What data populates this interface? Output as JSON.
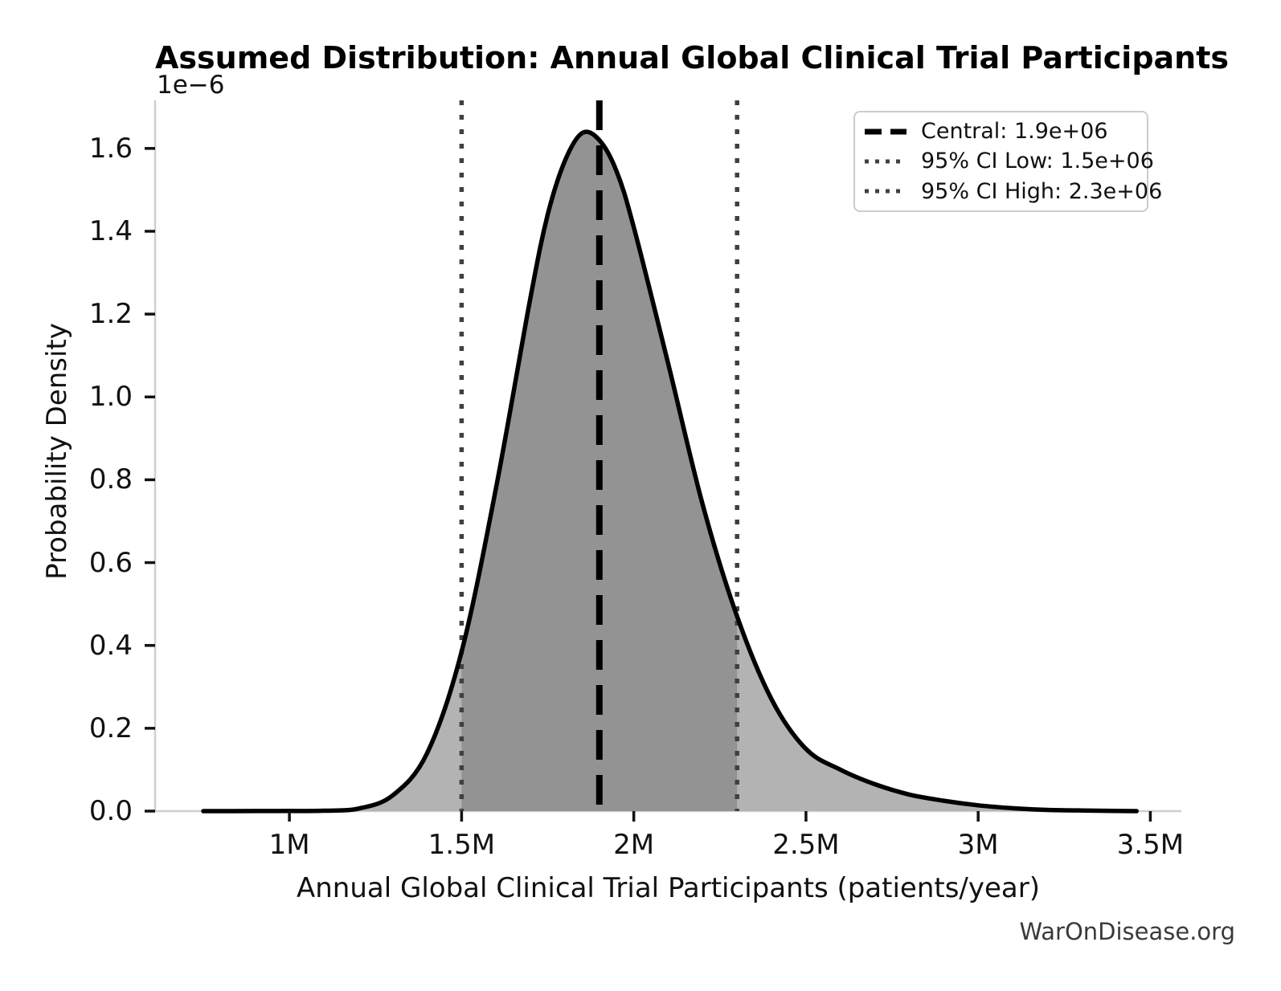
{
  "watermark": "WarOnDisease.org",
  "chart_data": {
    "type": "area",
    "title": "Assumed Distribution: Annual Global Clinical Trial Participants",
    "xlabel": "Annual Global Clinical Trial Participants (patients/year)",
    "ylabel": "Probability Density",
    "y_offset_label": "1e−6",
    "grid": false,
    "legend_position": "upper right",
    "xlim_millions": [
      0.61,
      3.59
    ],
    "ylim_1e6": [
      0,
      1.716
    ],
    "x_ticks": {
      "values_millions": [
        1,
        1.5,
        2,
        2.5,
        3,
        3.5
      ],
      "labels": [
        "1M",
        "1.5M",
        "2M",
        "2.5M",
        "3M",
        "3.5M"
      ]
    },
    "y_ticks": {
      "values_1e6": [
        0,
        0.2,
        0.4,
        0.6,
        0.8,
        1.0,
        1.2,
        1.4,
        1.6
      ],
      "labels": [
        "0.0",
        "0.2",
        "0.4",
        "0.6",
        "0.8",
        "1.0",
        "1.2",
        "1.4",
        "1.6"
      ]
    },
    "central": {
      "value": 1900000,
      "label": "Central: 1.9e+06",
      "line_style": "dashed"
    },
    "ci_low": {
      "value": 1500000,
      "label": "95% CI Low: 1.5e+06",
      "line_style": "dotted"
    },
    "ci_high": {
      "value": 2300000,
      "label": "95% CI High: 2.3e+06",
      "line_style": "dotted"
    },
    "curve": {
      "x_millions": [
        0.75,
        0.9,
        1.0,
        1.1,
        1.2,
        1.3,
        1.4,
        1.5,
        1.6,
        1.7,
        1.75,
        1.8,
        1.85,
        1.9,
        1.95,
        2.0,
        2.1,
        2.2,
        2.3,
        2.4,
        2.5,
        2.6,
        2.7,
        2.8,
        2.9,
        3.0,
        3.1,
        3.2,
        3.3,
        3.46
      ],
      "density_1e6": [
        0,
        0.0001,
        0.0003,
        0.001,
        0.006,
        0.038,
        0.14,
        0.385,
        0.78,
        1.24,
        1.44,
        1.57,
        1.637,
        1.62,
        1.545,
        1.41,
        1.08,
        0.74,
        0.47,
        0.27,
        0.15,
        0.1,
        0.065,
        0.04,
        0.025,
        0.014,
        0.007,
        0.003,
        0.0015,
        0
      ],
      "peak_density_1e6": 1.637
    },
    "colors": {
      "curve": "#000000",
      "fill_outer": "#b3b3b3",
      "fill_inner": "#939393",
      "dashed_line": "#000000",
      "dotted_line": "#404040",
      "spine": "#cfcfcf",
      "tick": "#111111",
      "text": "#111111",
      "watermark": "#3a3a3a"
    }
  }
}
